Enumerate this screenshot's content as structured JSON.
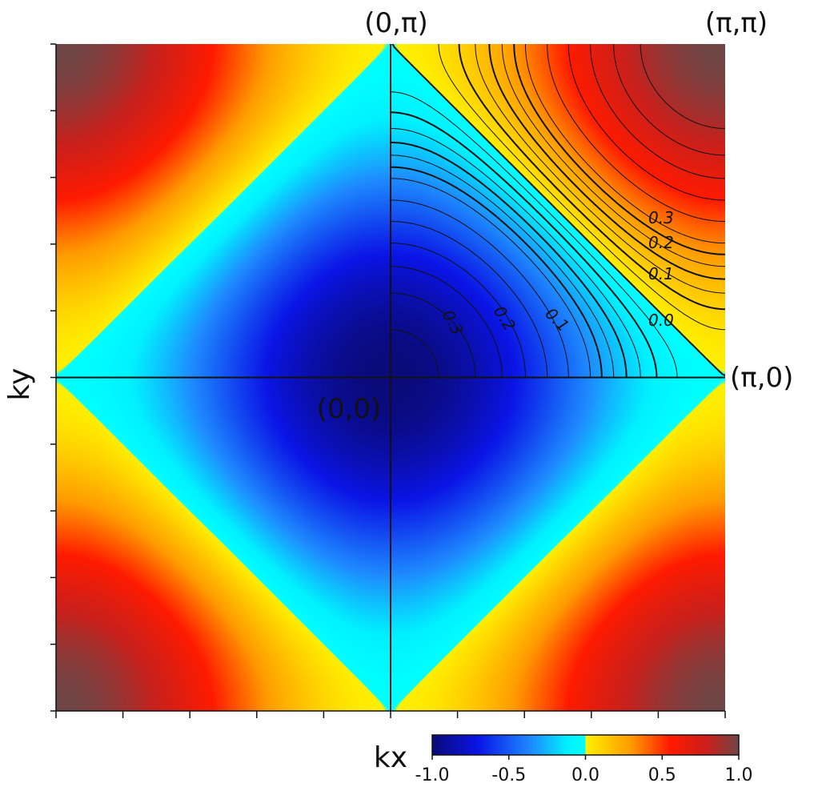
{
  "chart_data": {
    "type": "heatmap",
    "function": "-(cos kx + cos ky)/2",
    "x_range": [
      -3.1416,
      3.1416
    ],
    "y_range": [
      -3.1416,
      3.1416
    ],
    "xlabel": "kx",
    "ylabel": "ky",
    "point_labels": [
      {
        "text": "(0,π)",
        "kx": 0,
        "ky": 3.1416
      },
      {
        "text": "(π,π)",
        "kx": 3.1416,
        "ky": 3.1416
      },
      {
        "text": "(π,0)",
        "kx": 3.1416,
        "ky": 0
      },
      {
        "text": "(0,0)",
        "kx": 0,
        "ky": 0
      }
    ],
    "colorbar": {
      "min": -1.0,
      "max": 1.0,
      "ticks": [
        "-1.0",
        "-0.5",
        "0.0",
        "0.5",
        "1.0"
      ],
      "stops": [
        {
          "v": -1.0,
          "color": "#0a0a78"
        },
        {
          "v": -0.7,
          "color": "#0a14e6"
        },
        {
          "v": -0.35,
          "color": "#1e8cff"
        },
        {
          "v": -0.12,
          "color": "#00f0ff"
        },
        {
          "v": 0.0,
          "color": "#00ffff"
        },
        {
          "v": 0.001,
          "color": "#ffef00"
        },
        {
          "v": 0.3,
          "color": "#ff9a00"
        },
        {
          "v": 0.55,
          "color": "#ff1a00"
        },
        {
          "v": 0.8,
          "color": "#c8201c"
        },
        {
          "v": 1.0,
          "color": "#6e4646"
        }
      ]
    },
    "contour_labels_positive": [
      "0.3",
      "0.2",
      "0.1",
      "0.0"
    ],
    "contour_labels_negative": [
      "0.3",
      "0.2",
      "0.1"
    ],
    "grid": false
  }
}
